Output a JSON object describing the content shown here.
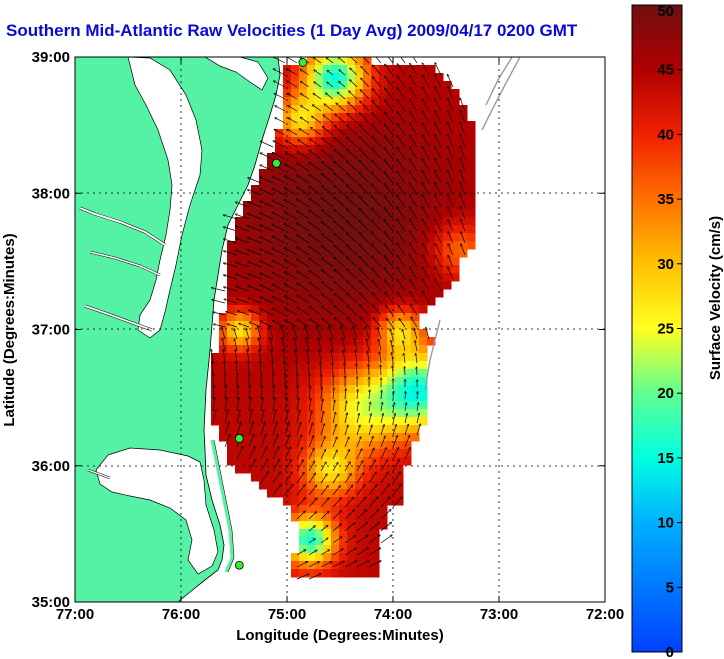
{
  "chart_data": {
    "type": "heatmap",
    "title": "Southern Mid-Atlantic Raw Velocities (1 Day Avg) 2009/04/17 0200 GMT",
    "xlabel": "Longitude (Degrees:Minutes)",
    "ylabel": "Latitude (Degrees:Minutes)",
    "x_ticks": [
      "77:00",
      "76:00",
      "75:00",
      "74:00",
      "73:00",
      "72:00"
    ],
    "x_tick_values": [
      -77,
      -76,
      -75,
      -74,
      -73,
      -72
    ],
    "y_ticks": [
      "39:00",
      "38:00",
      "37:00",
      "36:00",
      "35:00"
    ],
    "y_tick_values": [
      39,
      38,
      37,
      36,
      35
    ],
    "xlim": [
      -77,
      -72
    ],
    "ylim": [
      35,
      39
    ],
    "grid": true,
    "colorbar": {
      "label": "Surface Velocity (cm/s)",
      "range": [
        0,
        50
      ],
      "ticks": [
        "0",
        "5",
        "10",
        "15",
        "20",
        "25",
        "30",
        "35",
        "40",
        "45",
        "50"
      ],
      "tick_values": [
        0,
        5,
        10,
        15,
        20,
        25,
        30,
        35,
        40,
        45,
        50
      ]
    },
    "colors": {
      "land": "#55f2a6",
      "title": "#0a0ad8",
      "station": "#33ee33"
    },
    "stations": [
      {
        "lon": -74.85,
        "lat": 38.96
      },
      {
        "lon": -75.1,
        "lat": 38.22
      },
      {
        "lon": -75.45,
        "lat": 36.2
      },
      {
        "lon": -75.45,
        "lat": 35.27
      }
    ]
  }
}
